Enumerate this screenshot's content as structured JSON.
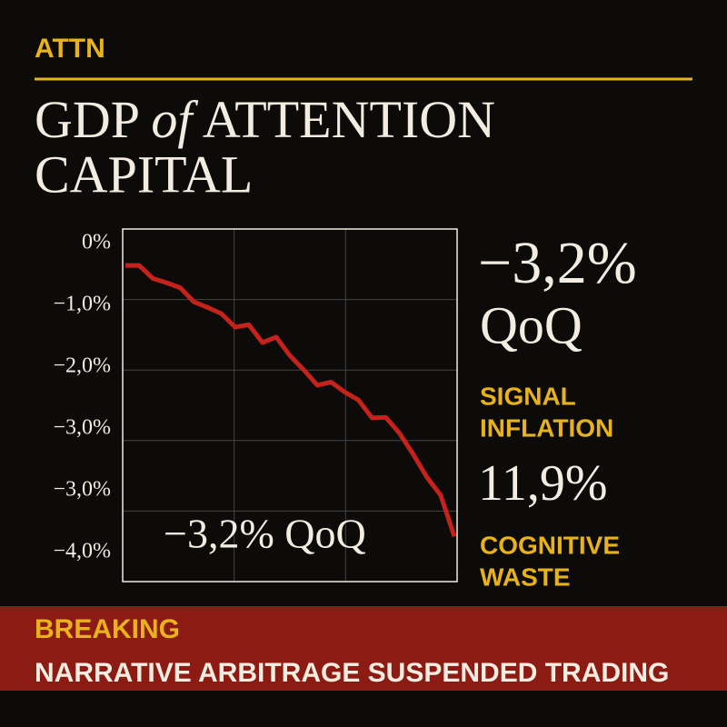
{
  "header": {
    "label": "ATTN",
    "title_1": "GDP",
    "title_of": "of",
    "title_2": "ATTENTION",
    "title_3": "CAPITAL"
  },
  "chart_data": {
    "type": "line",
    "y_axis_labels": [
      "0%",
      "−1,0%",
      "−2,0%",
      "−3,0%",
      "−3,0%",
      "−4,0%"
    ],
    "ylim": [
      -5.47,
      0.24
    ],
    "grid": true,
    "color": "#c4221b",
    "values": [
      -0.35,
      -0.35,
      -0.56,
      -0.63,
      -0.71,
      -0.94,
      -1.03,
      -1.13,
      -1.35,
      -1.31,
      -1.6,
      -1.51,
      -1.81,
      -2.04,
      -2.29,
      -2.24,
      -2.4,
      -2.53,
      -2.82,
      -2.81,
      -3.07,
      -3.41,
      -3.78,
      -4.07,
      -4.74
    ],
    "annotation": "−3,2% QoQ"
  },
  "stats": {
    "main_value": "−3,2%",
    "main_unit": "QoQ",
    "label_1a": "SIGNAL",
    "label_1b": "INFLATION",
    "second_value": "11,9%",
    "label_2a": "COGNITIVE",
    "label_2b": "WASTE"
  },
  "banner": {
    "kicker": "BREAKING",
    "headline": "NARRATIVE ARBITRAGE SUSPENDED TRADING"
  }
}
